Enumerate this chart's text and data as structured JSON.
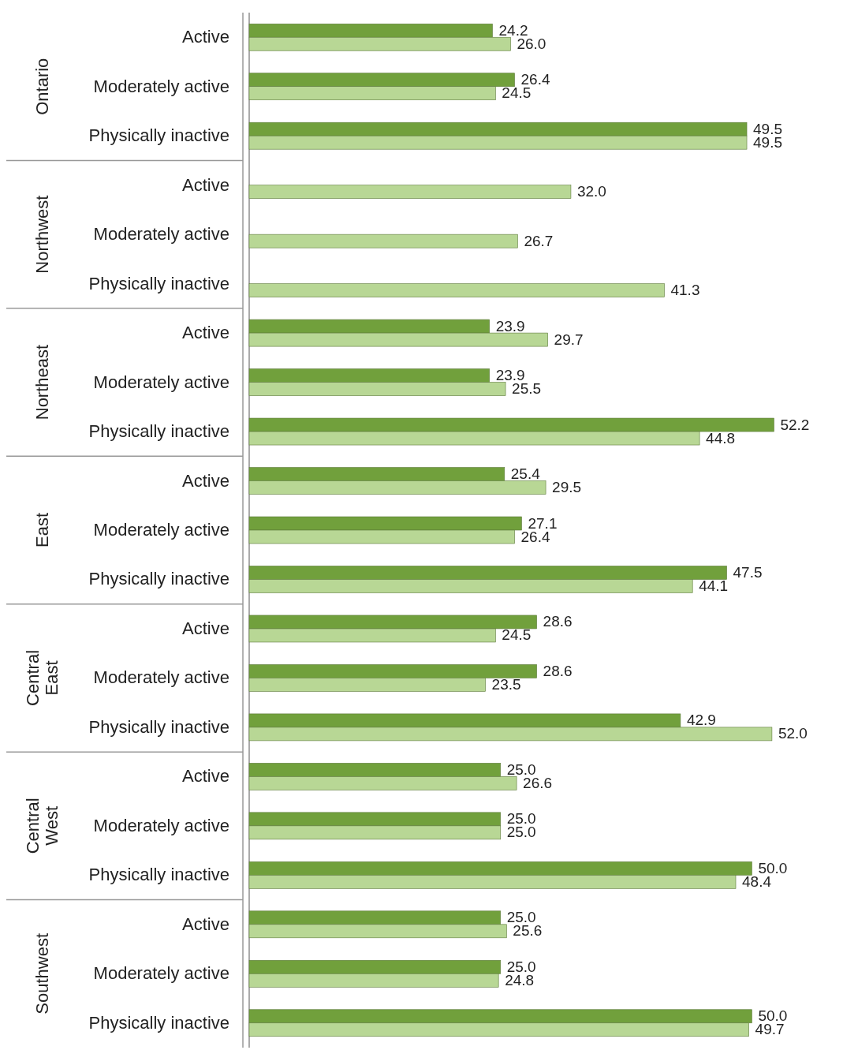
{
  "chart_data": {
    "type": "bar",
    "orientation": "horizontal",
    "categories": [
      "Active",
      "Moderately active",
      "Physically inactive",
      "Active",
      "Moderately active",
      "Physically inactive",
      "Active",
      "Moderately active",
      "Physically inactive",
      "Active",
      "Moderately active",
      "Physically inactive",
      "Active",
      "Moderately active",
      "Physically inactive",
      "Active",
      "Moderately active",
      "Physically inactive",
      "Active",
      "Moderately active",
      "Physically inactive"
    ],
    "annotations": [
      "Ontario",
      "Northwest",
      "Northeast",
      "East",
      "Central East",
      "Central West",
      "Southwest"
    ],
    "tick_labels": false,
    "grid": false,
    "series": [
      {
        "color": "#71a03c",
        "values": [
          24.2,
          26.4,
          49.5,
          null,
          null,
          null,
          23.9,
          23.9,
          52.2,
          25.4,
          27.1,
          47.5,
          28.6,
          28.6,
          42.9,
          25.0,
          25.0,
          50.0,
          25.0,
          25.0,
          50.0
        ],
        "value_labels": [
          "24.2",
          "26.4",
          "49.5",
          null,
          null,
          null,
          "23.9",
          "23.9",
          "52.2",
          "25.4",
          "27.1",
          "47.5",
          "28.6",
          "28.6",
          "42.9",
          "25.0",
          "25.0",
          "50.0",
          "25.0",
          "25.0",
          "50.0"
        ]
      },
      {
        "color": "#b8d795",
        "values": [
          26.0,
          24.5,
          49.5,
          32.0,
          26.7,
          41.3,
          29.7,
          25.5,
          44.8,
          29.5,
          26.4,
          44.1,
          24.5,
          23.5,
          52.0,
          26.6,
          25.0,
          48.4,
          25.6,
          24.8,
          49.7
        ],
        "value_labels": [
          "26.0",
          "24.5",
          "49.5",
          "32.0",
          "26.7",
          "41.3",
          "29.7",
          "25.5",
          "44.8",
          "29.5",
          "26.4",
          "44.1",
          "24.5",
          "23.5",
          "52.0",
          "26.6",
          "25.0",
          "48.4",
          "25.6",
          "24.8",
          "49.7"
        ]
      }
    ]
  }
}
